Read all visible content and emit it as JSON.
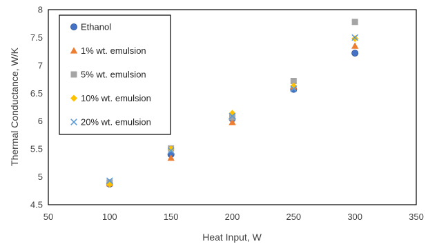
{
  "chart_data": {
    "type": "scatter",
    "title": "",
    "xlabel": "Heat Input, W",
    "ylabel": "Thermal Conductance, W/K",
    "xlim": [
      50,
      350
    ],
    "ylim": [
      4.5,
      8
    ],
    "x_ticks": [
      "50",
      "100",
      "150",
      "200",
      "250",
      "300",
      "350"
    ],
    "y_ticks": [
      "4.5",
      "5",
      "5.5",
      "6",
      "6.5",
      "7",
      "7.5",
      "8"
    ],
    "grid": false,
    "legend_position": "top-left",
    "x": [
      100,
      150,
      200,
      250,
      300
    ],
    "series": [
      {
        "name": "Ethanol",
        "marker": "circle",
        "color": "#4472C4",
        "values": [
          4.87,
          5.4,
          6.04,
          6.57,
          7.22
        ]
      },
      {
        "name": "1% wt. emulsion",
        "marker": "triangle",
        "color": "#ED7D31",
        "values": [
          4.88,
          5.34,
          5.98,
          6.62,
          7.35
        ]
      },
      {
        "name": "5% wt. emulsion",
        "marker": "square",
        "color": "#A5A5A5",
        "values": [
          4.9,
          5.51,
          6.07,
          6.72,
          7.78
        ]
      },
      {
        "name": "10% wt. emulsion",
        "marker": "diamond",
        "color": "#FFC000",
        "values": [
          4.87,
          5.5,
          6.14,
          6.63,
          7.48
        ]
      },
      {
        "name": "20% wt. emulsion",
        "marker": "x",
        "color": "#5B9BD5",
        "values": [
          4.93,
          5.47,
          6.09,
          6.58,
          7.5
        ]
      }
    ]
  }
}
